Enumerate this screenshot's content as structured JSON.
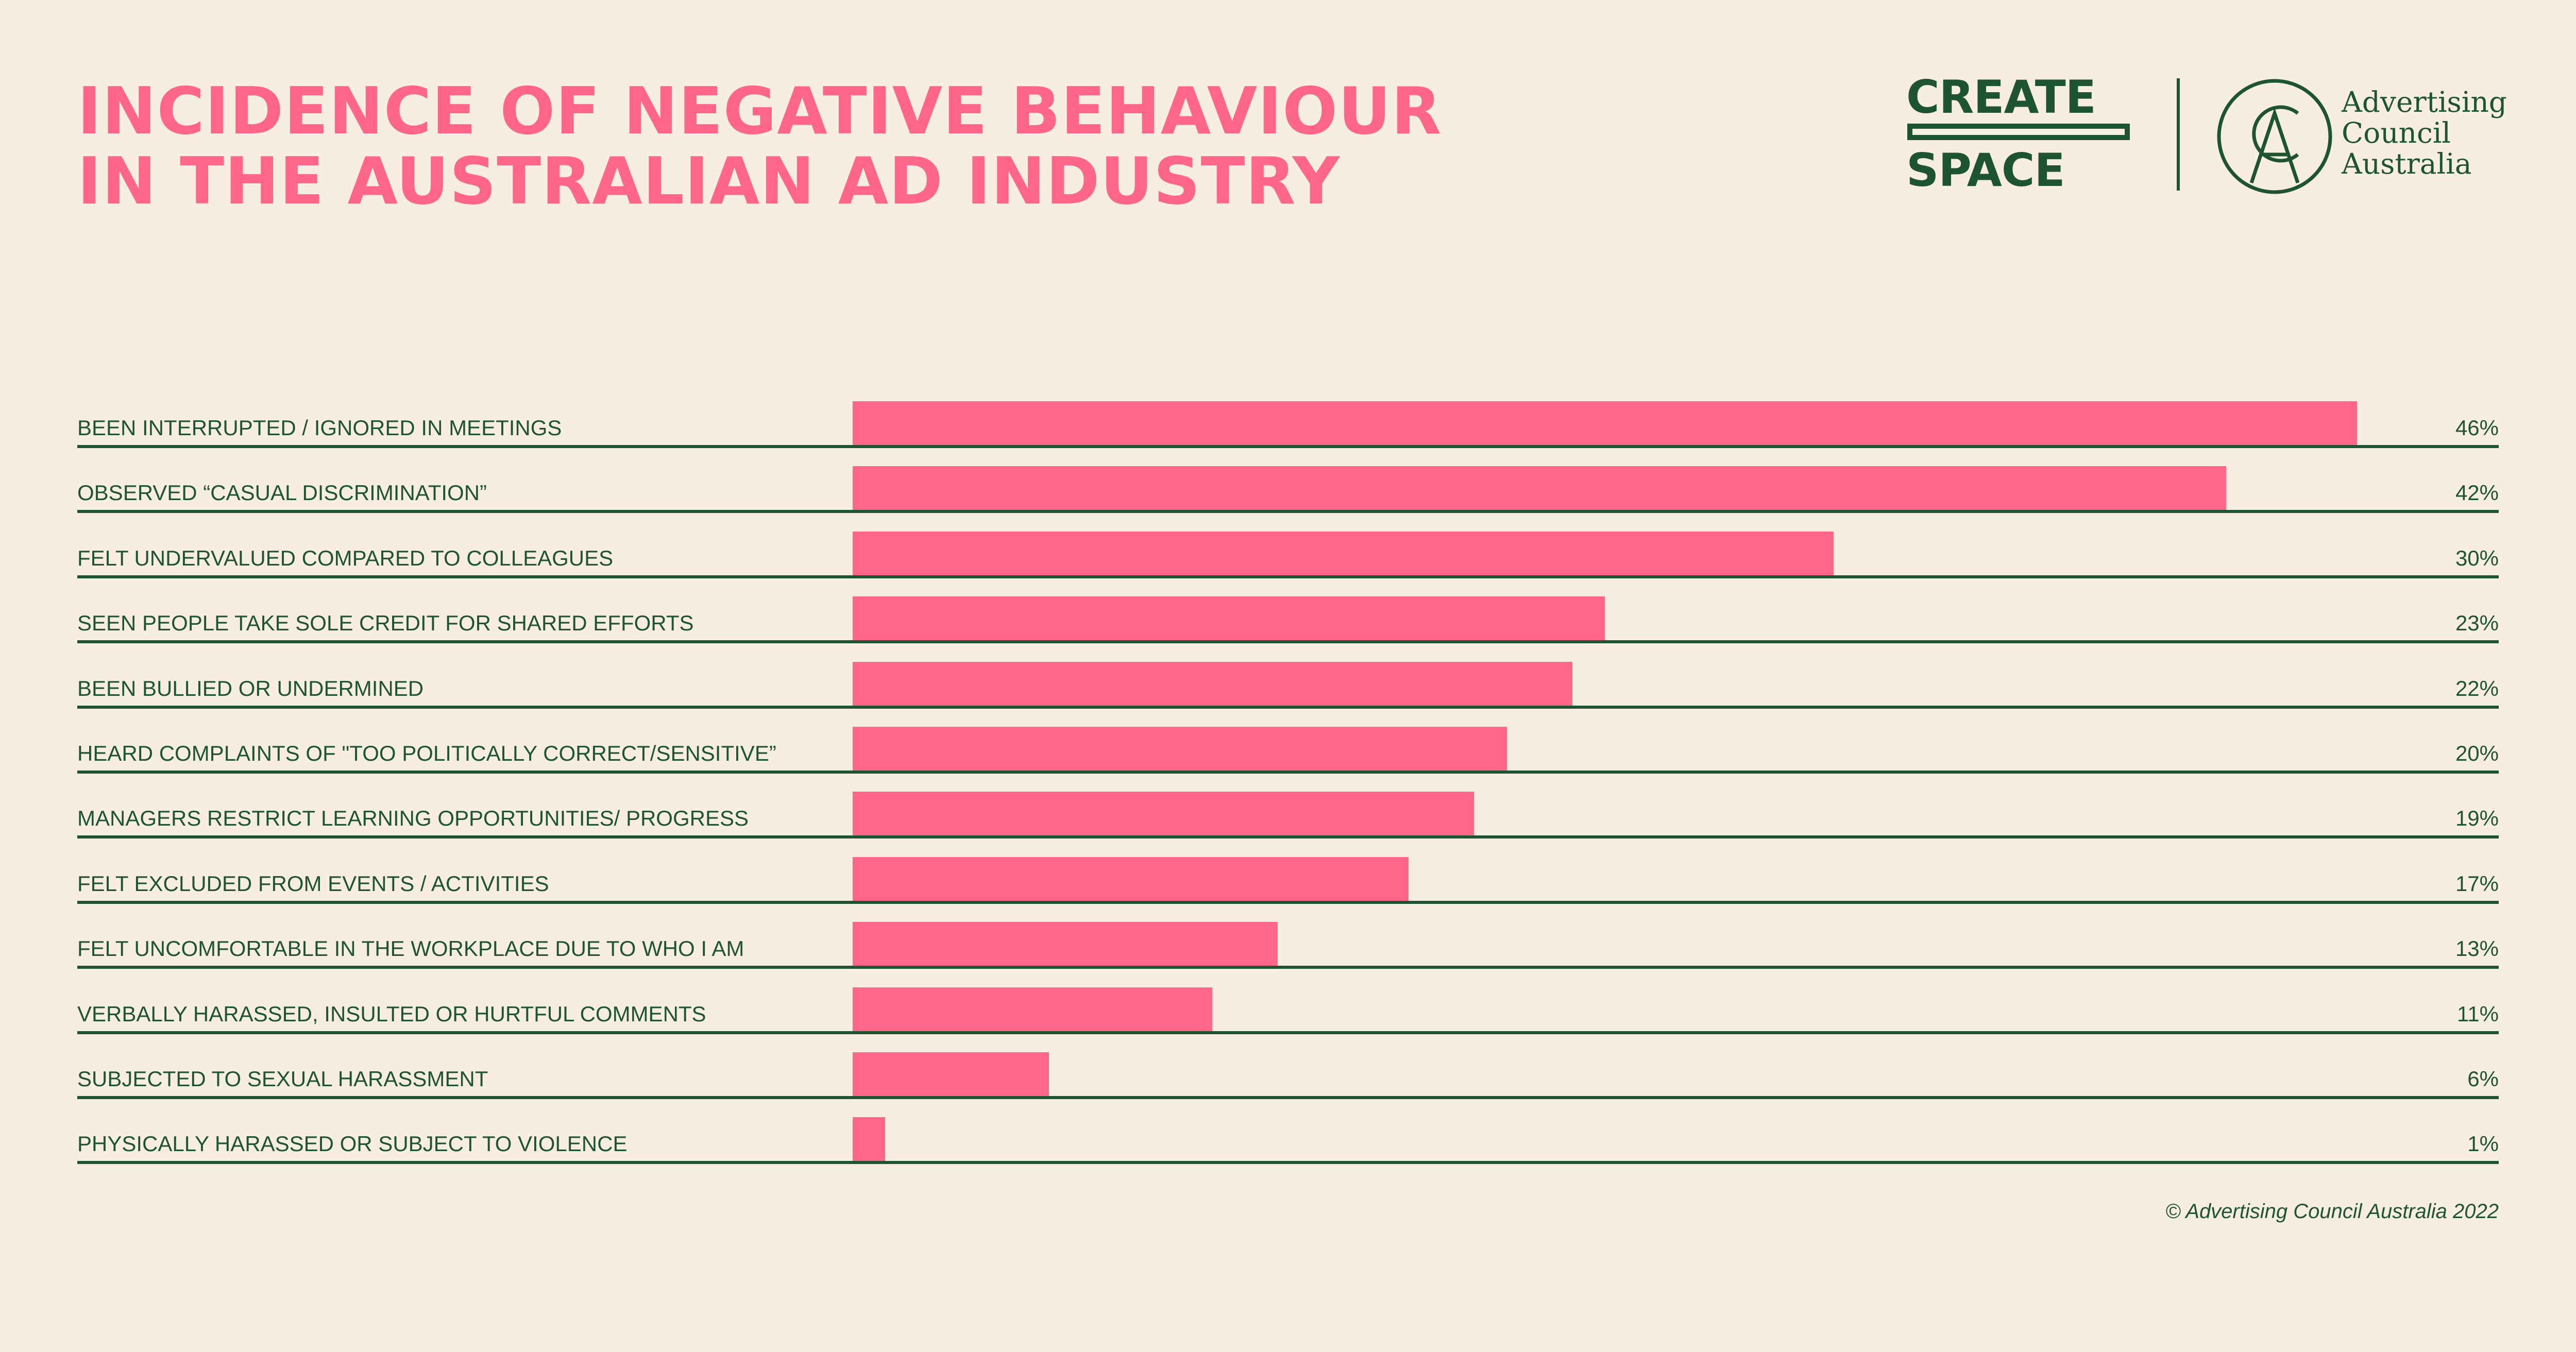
{
  "title": {
    "line1": "INCIDENCE OF NEGATIVE BEHAVIOUR",
    "line2": "IN THE AUSTRALIAN AD INDUSTRY"
  },
  "logos": {
    "create_space_top": "CREATE",
    "create_space_bottom": "SPACE",
    "acl_line1": "Advertising",
    "acl_line2": "Council",
    "acl_line3": "Australia"
  },
  "colors": {
    "background": "#f7ede0",
    "accent": "#ff6688",
    "text": "#1e5530"
  },
  "footer": "© Advertising Council Australia 2022",
  "chart_data": {
    "type": "bar",
    "orientation": "horizontal",
    "categories": [
      "BEEN INTERRUPTED / IGNORED IN MEETINGS",
      "OBSERVED “CASUAL DISCRIMINATION”",
      "FELT UNDERVALUED COMPARED TO COLLEAGUES",
      "SEEN PEOPLE TAKE SOLE CREDIT FOR SHARED EFFORTS",
      "BEEN BULLIED OR UNDERMINED",
      "HEARD COMPLAINTS OF \"TOO POLITICALLY CORRECT/SENSITIVE”",
      "MANAGERS RESTRICT LEARNING OPPORTUNITIES/ PROGRESS",
      "FELT EXCLUDED FROM EVENTS / ACTIVITIES",
      "FELT UNCOMFORTABLE IN THE WORKPLACE DUE TO WHO I AM",
      "VERBALLY HARASSED, INSULTED OR HURTFUL COMMENTS",
      "SUBJECTED TO SEXUAL HARASSMENT",
      "PHYSICALLY HARASSED OR SUBJECT TO VIOLENCE"
    ],
    "values": [
      46,
      42,
      30,
      23,
      22,
      20,
      19,
      17,
      13,
      11,
      6,
      1
    ],
    "value_labels": [
      "46%",
      "42%",
      "30%",
      "23%",
      "22%",
      "20%",
      "19%",
      "17%",
      "13%",
      "11%",
      "6%",
      "1%"
    ],
    "xlim": [
      0,
      46
    ],
    "grid": false,
    "legend": "none"
  }
}
